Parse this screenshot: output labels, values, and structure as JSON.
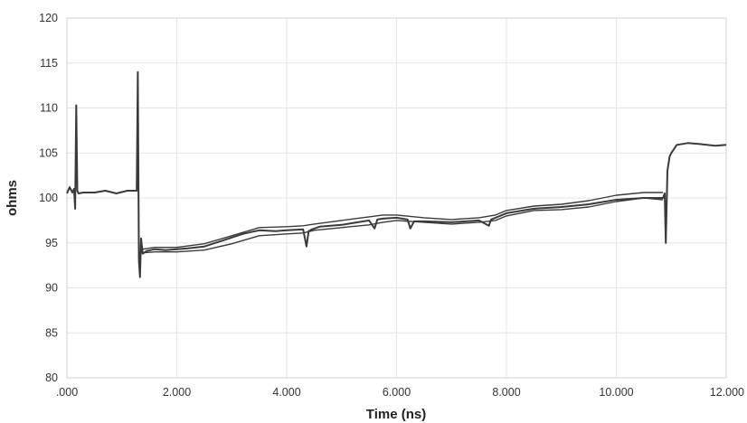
{
  "chart_data": {
    "type": "line",
    "title": "",
    "xlabel": "Time (ns)",
    "ylabel": "ohms",
    "xlim": [
      0,
      12
    ],
    "ylim": [
      80,
      120
    ],
    "grid": true,
    "legend": "none",
    "x_ticks": [
      {
        "value": 0,
        "label": ".000"
      },
      {
        "value": 2,
        "label": "2.000"
      },
      {
        "value": 4,
        "label": "4.000"
      },
      {
        "value": 6,
        "label": "6.000"
      },
      {
        "value": 8,
        "label": "8.000"
      },
      {
        "value": 10,
        "label": "10.000"
      },
      {
        "value": 12,
        "label": "12.000"
      }
    ],
    "y_ticks": [
      {
        "value": 80,
        "label": "80"
      },
      {
        "value": 85,
        "label": "85"
      },
      {
        "value": 90,
        "label": "90"
      },
      {
        "value": 95,
        "label": "95"
      },
      {
        "value": 100,
        "label": "100"
      },
      {
        "value": 105,
        "label": "105"
      },
      {
        "value": 110,
        "label": "110"
      },
      {
        "value": 115,
        "label": "115"
      },
      {
        "value": 120,
        "label": "120"
      }
    ],
    "line_color": "#3a3a3a",
    "series": [
      {
        "x": [
          0,
          0.05,
          0.1,
          0.13,
          0.15,
          0.17,
          0.19,
          0.21,
          0.3,
          0.5,
          0.7,
          0.9,
          1.1,
          1.27,
          1.29,
          1.31,
          1.33,
          1.35,
          1.38,
          1.45,
          1.6,
          1.8,
          2.0,
          2.2,
          2.5,
          2.8,
          3.2,
          3.5,
          3.8,
          4.0,
          4.3,
          4.36,
          4.4,
          4.46,
          4.6,
          5.0,
          5.5,
          5.6,
          5.65,
          5.75,
          6.0,
          6.2,
          6.25,
          6.32,
          6.5,
          7.0,
          7.5,
          7.68,
          7.72,
          7.8,
          8.0,
          8.5,
          9.0,
          9.5,
          10.0,
          10.5,
          10.85,
          10.88,
          10.9,
          10.93,
          10.97,
          11.0,
          11.1,
          11.3,
          11.5,
          11.8,
          12.0
        ],
        "y": [
          100.5,
          101.2,
          100.6,
          101.0,
          98.8,
          110.3,
          100.8,
          100.5,
          100.6,
          100.6,
          100.8,
          100.5,
          100.8,
          100.8,
          114.0,
          93.0,
          91.2,
          95.5,
          93.8,
          94.1,
          94.3,
          94.2,
          94.3,
          94.4,
          94.6,
          95.2,
          96.0,
          96.4,
          96.3,
          96.4,
          96.5,
          94.6,
          96.3,
          96.5,
          96.8,
          97.0,
          97.5,
          96.6,
          97.6,
          97.7,
          97.8,
          97.6,
          96.6,
          97.4,
          97.4,
          97.3,
          97.5,
          96.9,
          97.6,
          97.8,
          98.3,
          98.8,
          99.0,
          99.3,
          99.8,
          100.0,
          100.0,
          100.5,
          95.0,
          103.0,
          104.6,
          105.0,
          105.9,
          106.1,
          106.0,
          105.8,
          105.9
        ]
      },
      {
        "x": [
          1.38,
          1.6,
          2.0,
          2.5,
          3.0,
          3.5,
          4.0,
          4.3,
          4.5,
          5.0,
          5.5,
          5.75,
          6.0,
          6.5,
          7.0,
          7.5,
          7.8,
          8.0,
          8.5,
          9.0,
          9.5,
          10.0,
          10.5,
          10.85
        ],
        "y": [
          94.3,
          94.5,
          94.5,
          94.9,
          95.8,
          96.7,
          96.8,
          96.9,
          97.1,
          97.5,
          97.9,
          98.1,
          98.1,
          97.8,
          97.6,
          97.8,
          98.1,
          98.6,
          99.1,
          99.3,
          99.7,
          100.3,
          100.6,
          100.6
        ]
      },
      {
        "x": [
          1.38,
          1.6,
          2.0,
          2.5,
          3.0,
          3.5,
          4.0,
          4.3,
          4.5,
          5.0,
          5.5,
          5.75,
          6.0,
          6.5,
          7.0,
          7.5,
          7.8,
          8.0,
          8.5,
          9.0,
          9.5,
          10.0,
          10.5,
          10.85
        ],
        "y": [
          93.9,
          94.0,
          94.0,
          94.2,
          94.9,
          95.8,
          96.0,
          96.1,
          96.4,
          96.7,
          97.0,
          97.3,
          97.5,
          97.3,
          97.1,
          97.3,
          97.5,
          98.0,
          98.6,
          98.7,
          99.0,
          99.6,
          100.0,
          99.8
        ]
      }
    ]
  }
}
